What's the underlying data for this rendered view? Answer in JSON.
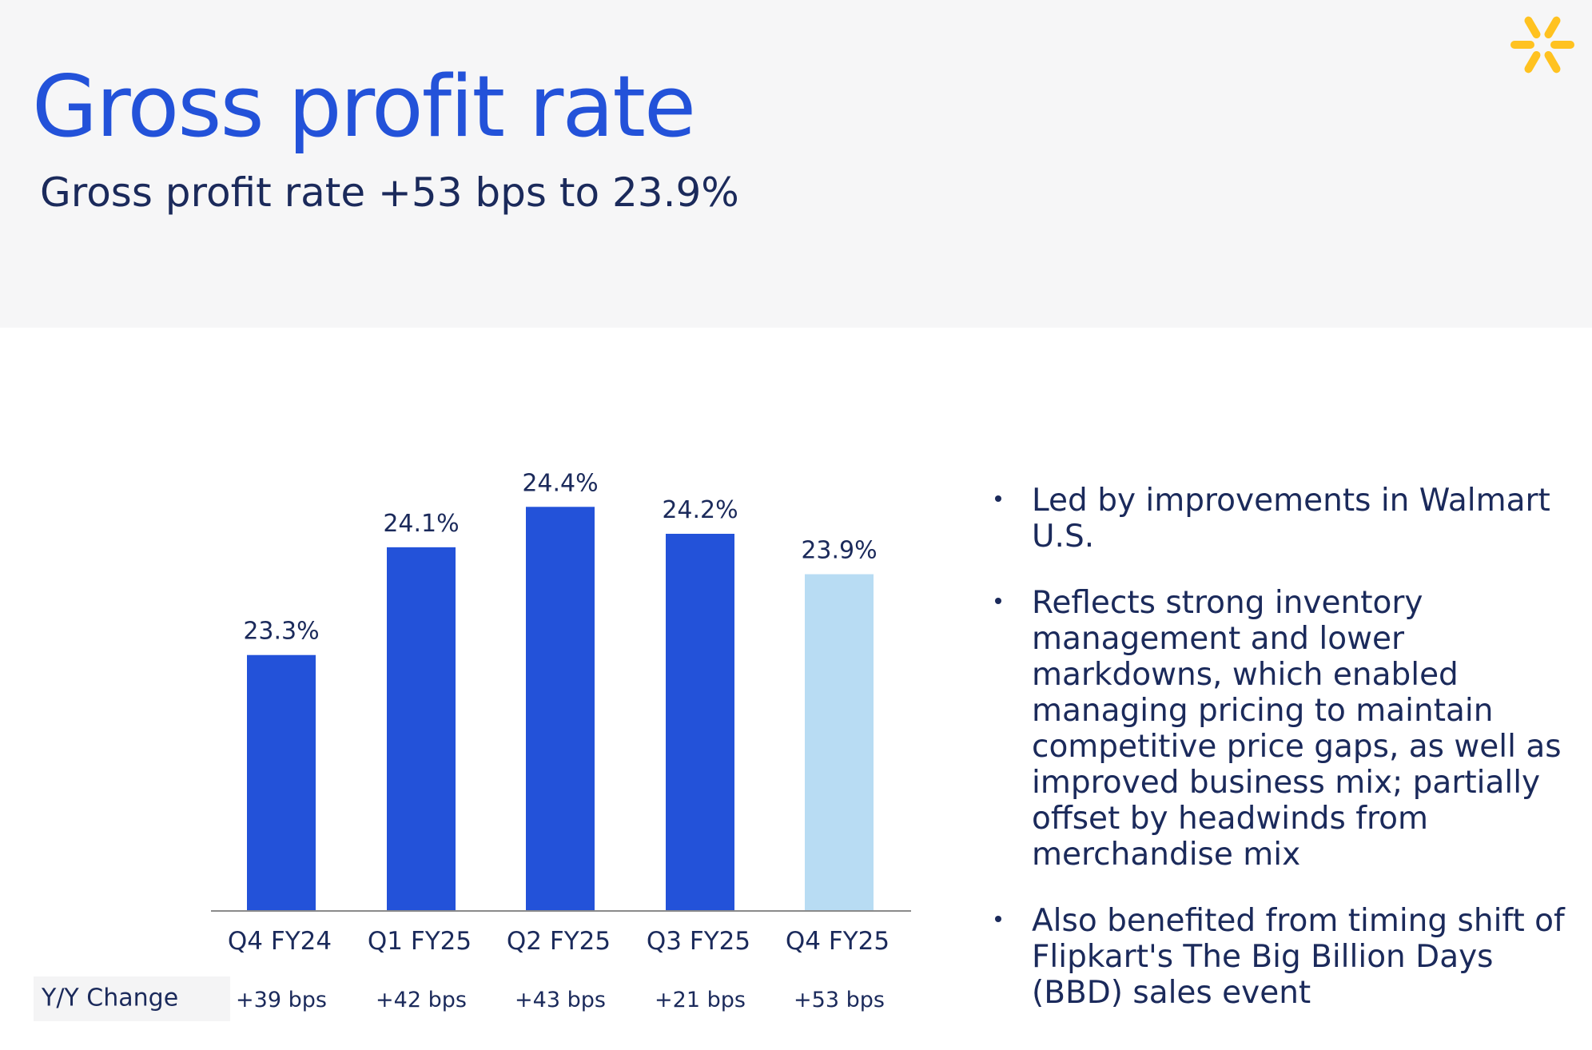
{
  "header": {
    "title": "Gross profit rate",
    "subtitle": "Gross profit rate +53 bps to 23.9%"
  },
  "logo": {
    "icon": "walmart-spark-icon",
    "color": "#ffc220"
  },
  "colors": {
    "title": "#2352d9",
    "text": "#1b2a5b",
    "bar": "#2352d9",
    "bar_highlight": "#b8dcf3",
    "header_bg": "#f6f6f7"
  },
  "chart_data": {
    "type": "bar",
    "categories": [
      "Q4 FY24",
      "Q1 FY25",
      "Q2 FY25",
      "Q3 FY25",
      "Q4 FY25"
    ],
    "values": [
      23.3,
      24.1,
      24.4,
      24.2,
      23.9
    ],
    "value_labels": [
      "23.3%",
      "24.1%",
      "24.4%",
      "24.2%",
      "23.9%"
    ],
    "highlight_index": 4,
    "ylim": [
      21.4,
      24.9
    ],
    "grid": false,
    "yoy": {
      "label": "Y/Y Change",
      "values": [
        "+39 bps",
        "+42 bps",
        "+43 bps",
        "+21 bps",
        "+53 bps"
      ]
    }
  },
  "bullets": [
    "Led by improvements in Walmart U.S.",
    "Reflects strong inventory management and lower markdowns, which enabled managing pricing to maintain competitive price gaps, as well as improved business mix; partially offset by headwinds from merchandise mix",
    "Also benefited from timing shift of Flipkart's The Big Billion Days (BBD) sales event"
  ]
}
